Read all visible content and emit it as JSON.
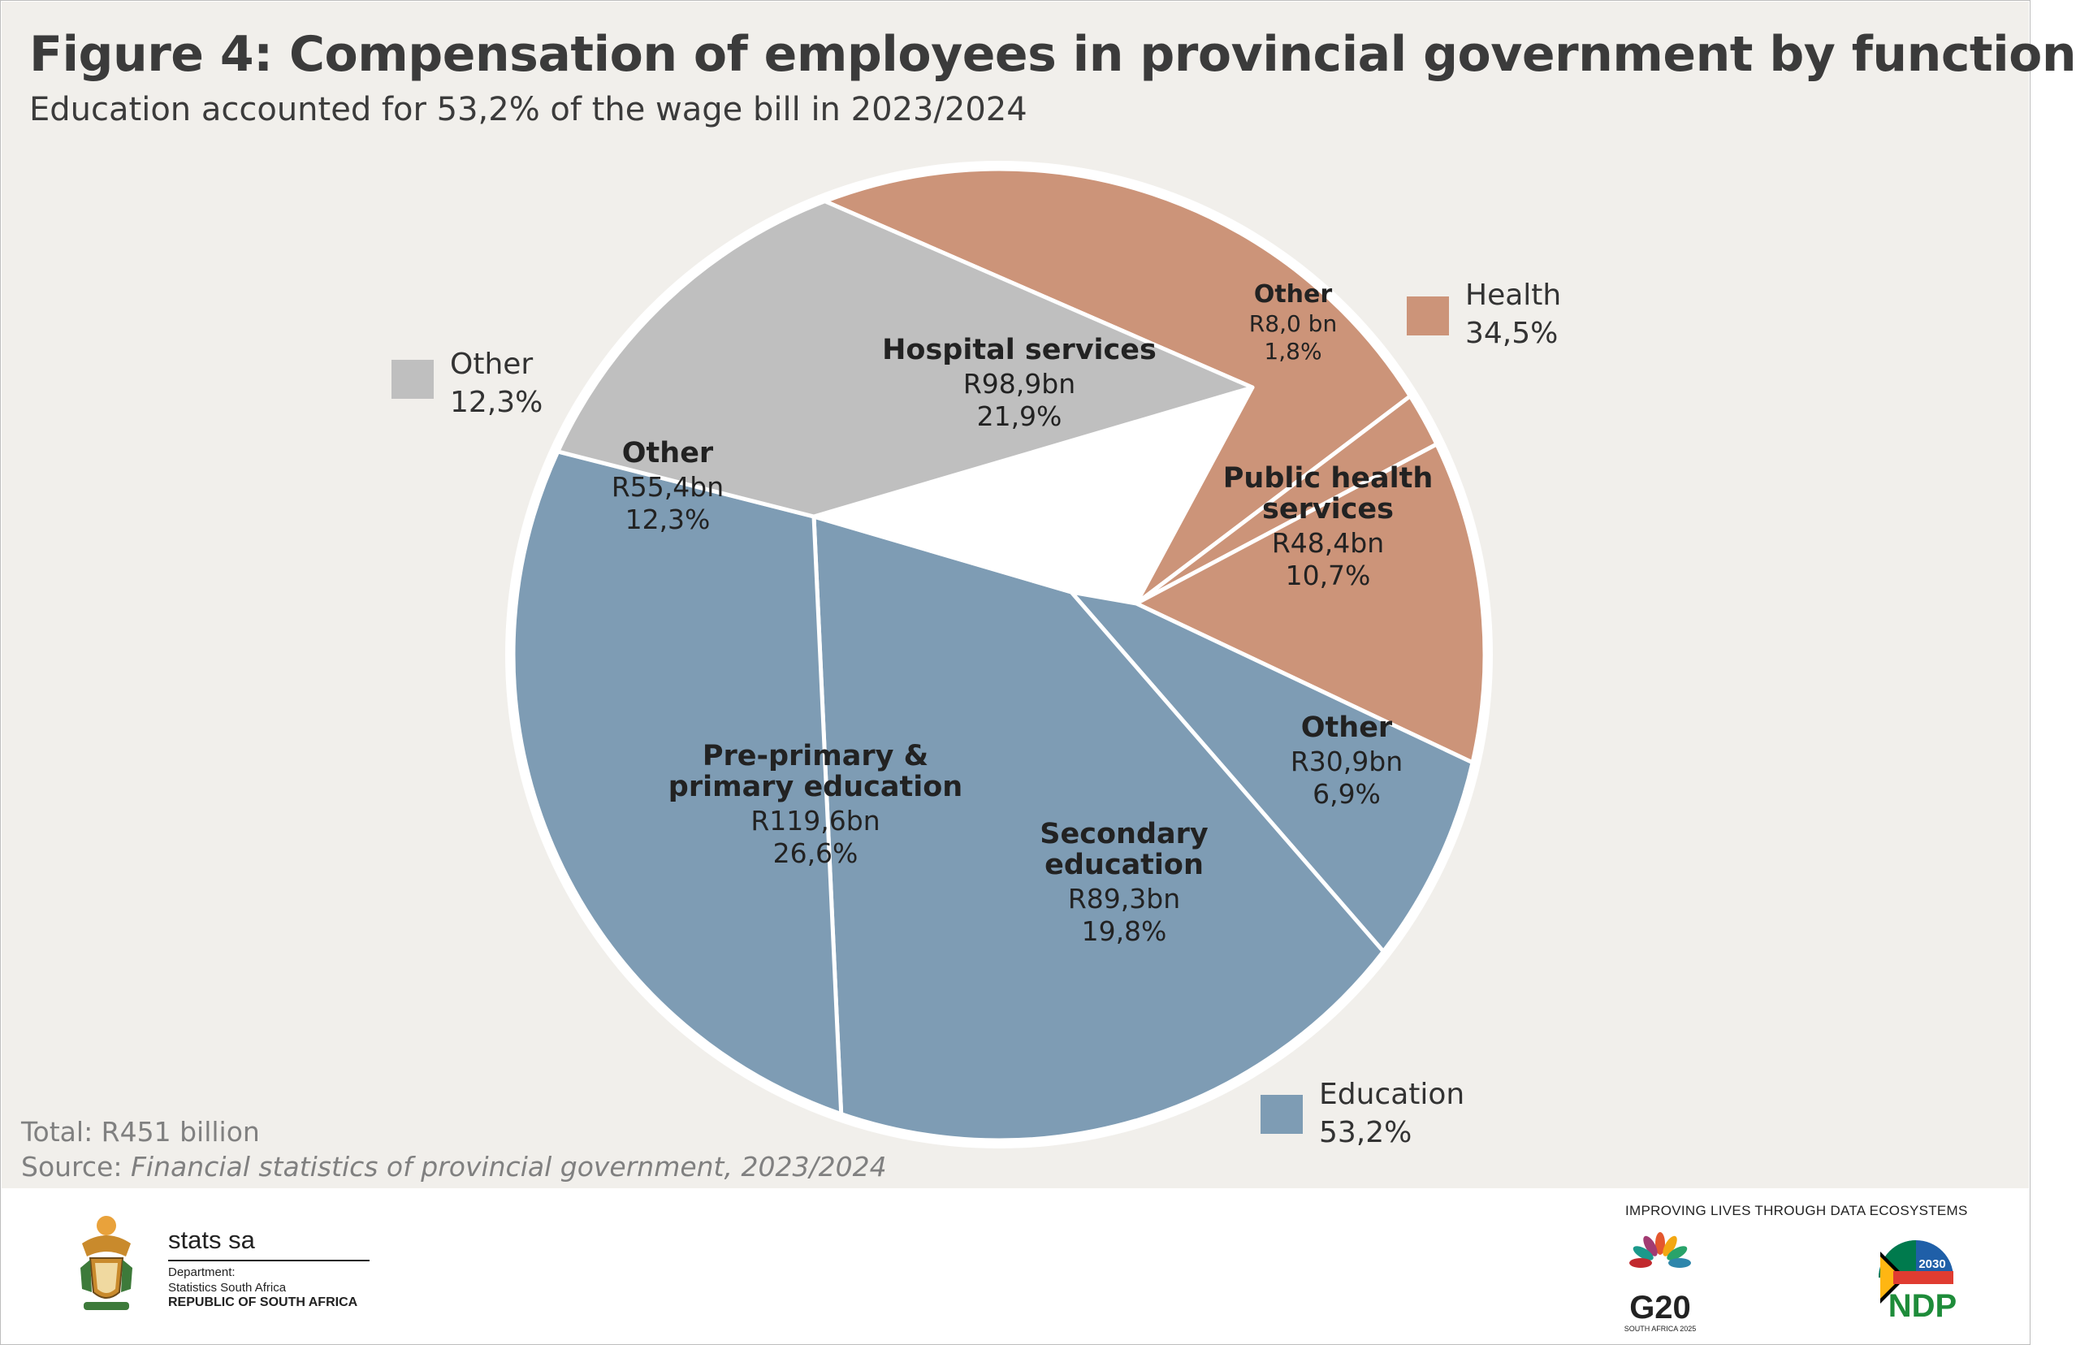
{
  "title": "Figure 4: Compensation of employees in provincial government by function",
  "subtitle": "Education accounted for 53,2% of the wage bill in 2023/2024",
  "chart_data": {
    "type": "pie",
    "total_label": "Total: R451  billion",
    "slices": [
      {
        "category": "Health",
        "label": "Hospital services",
        "amount": "R98,9bn",
        "percent": "21,9%",
        "value": 21.9,
        "color": "#cc9479",
        "label_lines": [
          "Hospital services"
        ]
      },
      {
        "category": "Health",
        "label": "Other",
        "amount": "R8,0 bn",
        "percent": "1,8%",
        "value": 1.8,
        "color": "#cc9479",
        "label_lines": [
          "Other"
        ]
      },
      {
        "category": "Health",
        "label": "Public health services",
        "amount": "R48,4bn",
        "percent": "10,7%",
        "value": 10.7,
        "color": "#cc9479",
        "label_lines": [
          "Public health",
          "services"
        ]
      },
      {
        "category": "Education",
        "label": "Other",
        "amount": "R30,9bn",
        "percent": "6,9%",
        "value": 6.9,
        "color": "#7e9cb4",
        "label_lines": [
          "Other"
        ]
      },
      {
        "category": "Education",
        "label": "Secondary education",
        "amount": "R89,3bn",
        "percent": "19,8%",
        "value": 19.8,
        "color": "#7e9cb4",
        "label_lines": [
          "Secondary",
          "education"
        ]
      },
      {
        "category": "Education",
        "label": "Pre-primary & primary education",
        "amount": "R119,6bn",
        "percent": "26,6%",
        "value": 26.6,
        "color": "#7e9cb4",
        "label_lines": [
          "Pre-primary &",
          "primary education"
        ]
      },
      {
        "category": "Other",
        "label": "Other",
        "amount": "R55,4bn",
        "percent": "12,3%",
        "value": 12.3,
        "color": "#bfbfbf",
        "label_lines": [
          "Other"
        ]
      }
    ],
    "legend": [
      {
        "name": "Other",
        "percent": "12,3%",
        "color": "#bfbfbf"
      },
      {
        "name": "Health",
        "percent": "34,5%",
        "color": "#cc9479"
      },
      {
        "name": "Education",
        "percent": "53,2%",
        "color": "#7e9cb4"
      }
    ]
  },
  "source": {
    "prefix": "Source: ",
    "title": "Financial statistics of provincial government, 2023/2024"
  },
  "footer": {
    "tagline": "IMPROVING LIVES THROUGH DATA ECOSYSTEMS",
    "org_name": "stats sa",
    "dept_line1": "Department:",
    "dept_line2": "Statistics South Africa",
    "dept_line3": "REPUBLIC OF SOUTH AFRICA",
    "g20_text": "G20",
    "g20_sub": "SOUTH AFRICA 2025",
    "ndp_text": "NDP",
    "ndp_year": "2030"
  }
}
